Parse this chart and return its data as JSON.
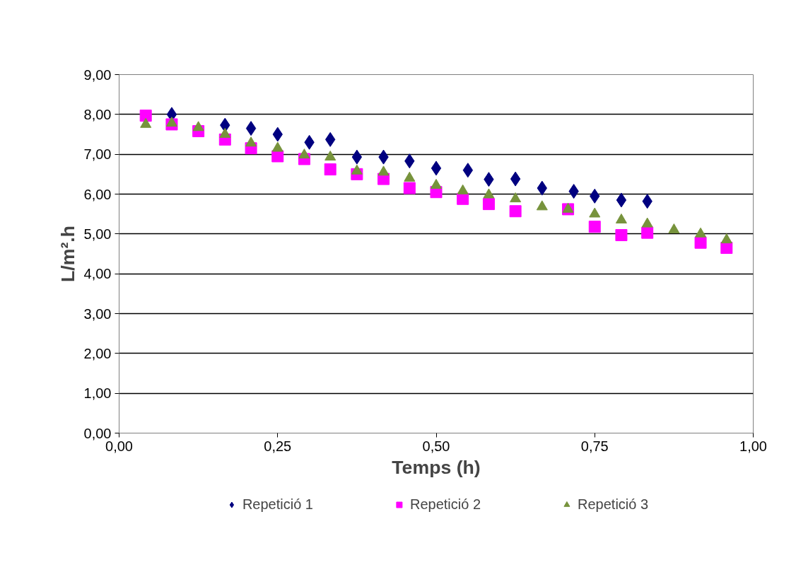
{
  "chart_data": {
    "type": "scatter",
    "xlabel": "Temps (h)",
    "ylabel": "L/m².h",
    "xlim": [
      0,
      1
    ],
    "xticks": [
      {
        "value": 0,
        "label": "0,00"
      },
      {
        "value": 0.25,
        "label": "0,25"
      },
      {
        "value": 0.5,
        "label": "0,50"
      },
      {
        "value": 0.75,
        "label": "0,75"
      },
      {
        "value": 1,
        "label": "1,00"
      }
    ],
    "ylim": [
      0,
      9
    ],
    "yticks": [
      {
        "value": 0,
        "label": "0,00"
      },
      {
        "value": 1,
        "label": "1,00"
      },
      {
        "value": 2,
        "label": "2,00"
      },
      {
        "value": 3,
        "label": "3,00"
      },
      {
        "value": 4,
        "label": "4,00"
      },
      {
        "value": 5,
        "label": "5,00"
      },
      {
        "value": 6,
        "label": "6,00"
      },
      {
        "value": 7,
        "label": "7,00"
      },
      {
        "value": 8,
        "label": "8,00"
      },
      {
        "value": 9,
        "label": "9,00"
      }
    ],
    "grid": "y",
    "legend": "bottom",
    "series": [
      {
        "name": "Repetició 1",
        "color": "#000080",
        "marker": "diamond",
        "x": [
          0.083,
          0.167,
          0.208,
          0.25,
          0.3,
          0.333,
          0.375,
          0.417,
          0.458,
          0.5,
          0.55,
          0.583,
          0.625,
          0.667,
          0.717,
          0.75,
          0.792,
          0.833
        ],
        "values": [
          8.0,
          7.73,
          7.65,
          7.5,
          7.3,
          7.37,
          6.93,
          6.93,
          6.83,
          6.65,
          6.6,
          6.37,
          6.38,
          6.15,
          6.07,
          5.95,
          5.85,
          5.82
        ]
      },
      {
        "name": "Repetició 2",
        "color": "#ff00ff",
        "marker": "square",
        "x": [
          0.042,
          0.083,
          0.125,
          0.167,
          0.208,
          0.25,
          0.292,
          0.333,
          0.375,
          0.417,
          0.458,
          0.5,
          0.542,
          0.583,
          0.625,
          0.708,
          0.75,
          0.792,
          0.833,
          0.917,
          0.958
        ],
        "values": [
          7.97,
          7.75,
          7.58,
          7.37,
          7.15,
          6.95,
          6.88,
          6.62,
          6.5,
          6.38,
          6.15,
          6.05,
          5.88,
          5.75,
          5.57,
          5.62,
          5.18,
          4.97,
          5.03,
          4.78,
          4.65
        ]
      },
      {
        "name": "Repetició 3",
        "color": "#77933c",
        "marker": "triangle",
        "x": [
          0.042,
          0.083,
          0.125,
          0.167,
          0.208,
          0.25,
          0.292,
          0.333,
          0.375,
          0.417,
          0.458,
          0.5,
          0.542,
          0.583,
          0.625,
          0.667,
          0.708,
          0.75,
          0.792,
          0.833,
          0.875,
          0.917,
          0.958
        ],
        "values": [
          7.75,
          7.78,
          7.67,
          7.5,
          7.28,
          7.15,
          6.98,
          6.93,
          6.58,
          6.55,
          6.4,
          6.22,
          6.08,
          5.98,
          5.88,
          5.68,
          5.62,
          5.5,
          5.35,
          5.25,
          5.1,
          5.0,
          4.85
        ]
      }
    ]
  }
}
